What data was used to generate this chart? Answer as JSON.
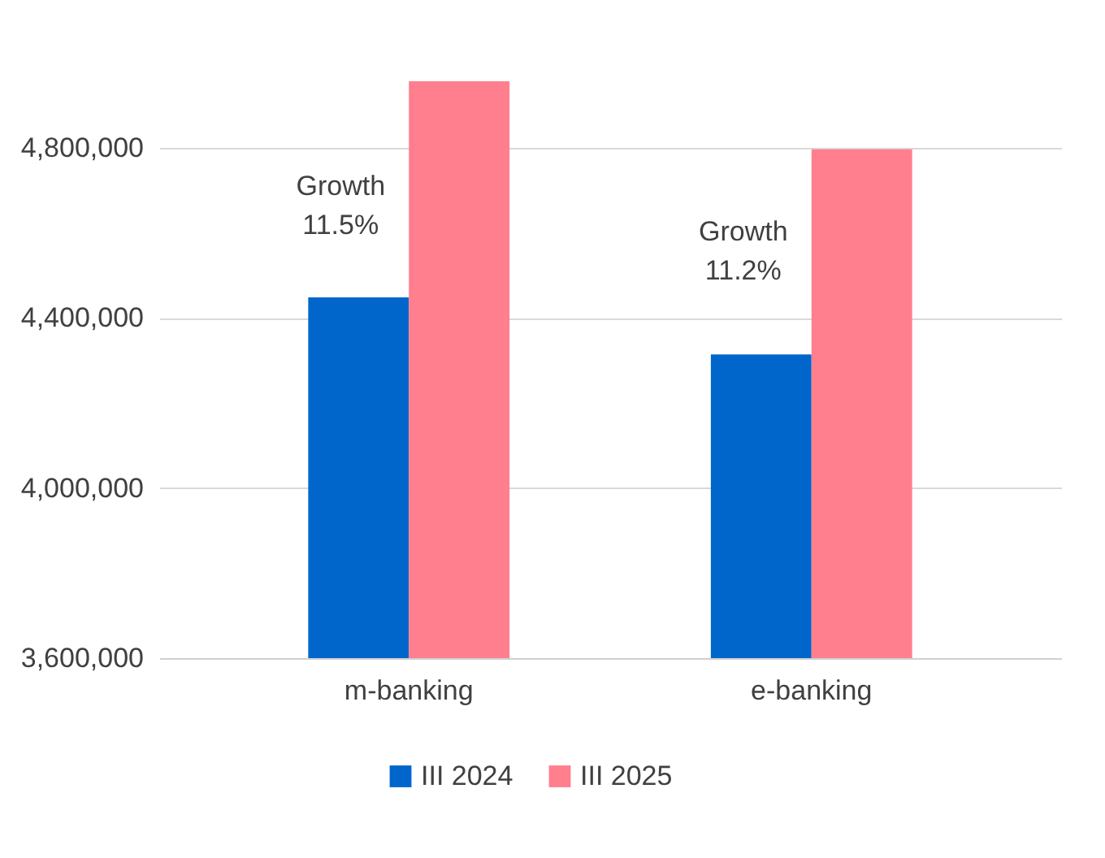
{
  "chart_data": {
    "type": "bar",
    "categories": [
      "m-banking",
      "e-banking"
    ],
    "series": [
      {
        "name": "III 2024",
        "color": "#0066cc",
        "values": [
          4448000,
          4314000
        ]
      },
      {
        "name": "III 2025",
        "color": "#ff7f8e",
        "values": [
          4956000,
          4796000
        ]
      }
    ],
    "ylim": [
      3600000,
      4960000
    ],
    "yticks": [
      {
        "value": 3600000,
        "label": "3,600,000"
      },
      {
        "value": 4000000,
        "label": "4,000,000"
      },
      {
        "value": 4400000,
        "label": "4,400,000"
      },
      {
        "value": 4800000,
        "label": "4,800,000"
      }
    ],
    "grid": "y",
    "legend": "bottom",
    "annotations": [
      "Growth\n11.5%",
      "Growth\n11.2%"
    ]
  }
}
